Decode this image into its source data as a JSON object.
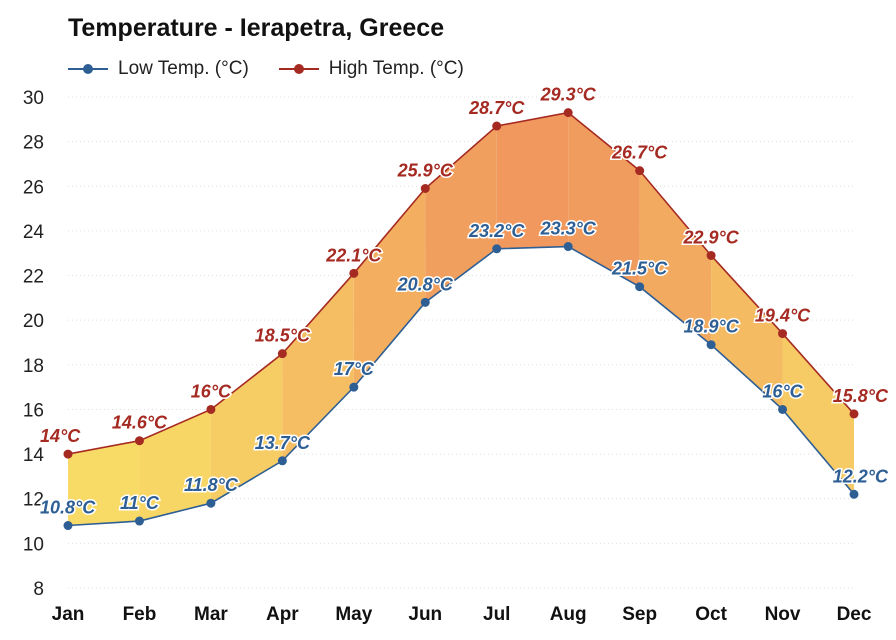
{
  "title": "Temperature - Ierapetra, Greece",
  "legend": {
    "low_label": "Low Temp. (°C)",
    "high_label": "High Temp. (°C)"
  },
  "colors": {
    "low": "#2e5f94",
    "high": "#a52a22",
    "band_warm": "#f2c14e",
    "band_hot": "#ef8a3c",
    "grid": "#dddddd"
  },
  "chart_data": {
    "type": "line",
    "title": "Temperature - Ierapetra, Greece",
    "categories": [
      "Jan",
      "Feb",
      "Mar",
      "Apr",
      "May",
      "Jun",
      "Jul",
      "Aug",
      "Sep",
      "Oct",
      "Nov",
      "Dec"
    ],
    "series": [
      {
        "name": "Low Temp. (°C)",
        "values": [
          10.8,
          11,
          11.8,
          13.7,
          17,
          20.8,
          23.2,
          23.3,
          21.5,
          18.9,
          16,
          12.2
        ],
        "labels": [
          "10.8°C",
          "11°C",
          "11.8°C",
          "13.7°C",
          "17°C",
          "20.8°C",
          "23.2°C",
          "23.3°C",
          "21.5°C",
          "18.9°C",
          "16°C",
          "12.2°C"
        ]
      },
      {
        "name": "High Temp. (°C)",
        "values": [
          14,
          14.6,
          16,
          18.5,
          22.1,
          25.9,
          28.7,
          29.3,
          26.7,
          22.9,
          19.4,
          15.8
        ],
        "labels": [
          "14°C",
          "14.6°C",
          "16°C",
          "18.5°C",
          "22.1°C",
          "25.9°C",
          "28.7°C",
          "29.3°C",
          "26.7°C",
          "22.9°C",
          "19.4°C",
          "15.8°C"
        ]
      }
    ],
    "ylim": [
      8,
      30
    ],
    "yticks": [
      "8",
      "10",
      "12",
      "14",
      "16",
      "18",
      "20",
      "22",
      "24",
      "26",
      "28",
      "30"
    ],
    "grid": true,
    "legend_position": "top-left"
  }
}
